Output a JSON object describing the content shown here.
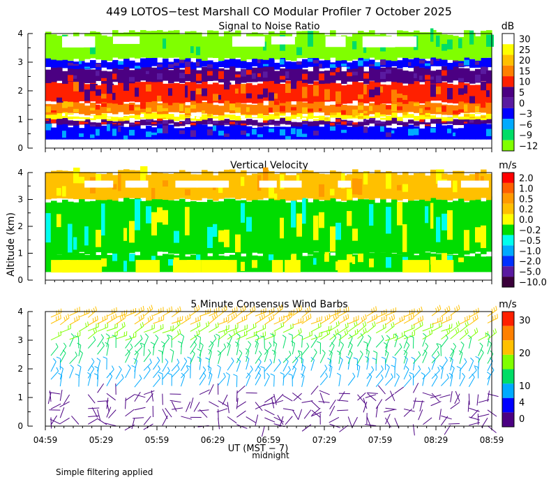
{
  "page": {
    "title": "449 LOTOS−test Marshall CO Modular Profiler  7 October 2025",
    "y_axis_label": "Altitude (km)",
    "x_axis_label": "UT  (MST − 7)",
    "x_axis_sublabel": "midnight",
    "footnote": "Simple filtering applied"
  },
  "chart_data": [
    {
      "type": "heatmap",
      "title": "Signal to Noise Ratio",
      "ylabel": "Altitude (km)",
      "ylim": [
        0,
        4
      ],
      "y_ticks": [
        "0",
        "1",
        "2",
        "3",
        "4"
      ],
      "x_ticks": [
        "04:59",
        "05:29",
        "05:59",
        "06:29",
        "06:59",
        "07:29",
        "07:59",
        "08:29",
        "08:59"
      ],
      "colorbar": {
        "unit": "dB",
        "labels": [
          "30",
          "25",
          "20",
          "15",
          "10",
          "5",
          "0",
          "−3",
          "−6",
          "−9",
          "−12"
        ],
        "colors": [
          "#ffffff",
          "#ffff00",
          "#ffc000",
          "#ff8000",
          "#ff2000",
          "#4b0082",
          "#5a1aa0",
          "#0000ff",
          "#00aaff",
          "#00dd66",
          "#80ff00"
        ]
      },
      "layers": [
        {
          "alt_range": [
            0.3,
            0.8
          ],
          "value_db": -3,
          "color": "#0000ff"
        },
        {
          "alt_range": [
            0.8,
            1.0
          ],
          "value_db": 0,
          "color": "#4b0082"
        },
        {
          "alt_range": [
            1.0,
            1.2
          ],
          "value_db": 25,
          "color": "#ffff00"
        },
        {
          "alt_range": [
            1.2,
            1.6
          ],
          "value_db": 15,
          "color": "#ff8000"
        },
        {
          "alt_range": [
            1.6,
            2.3
          ],
          "value_db": 10,
          "color": "#ff2000"
        },
        {
          "alt_range": [
            2.3,
            2.8
          ],
          "value_db": 0,
          "color": "#4b0082"
        },
        {
          "alt_range": [
            2.8,
            3.1
          ],
          "value_db": -3,
          "color": "#0000ff"
        },
        {
          "alt_range": [
            3.1,
            4.0
          ],
          "value_db": -12,
          "color": "#80ff00"
        }
      ]
    },
    {
      "type": "heatmap",
      "title": "Vertical Velocity",
      "ylabel": "Altitude (km)",
      "ylim": [
        0,
        4
      ],
      "y_ticks": [
        "0",
        "1",
        "2",
        "3",
        "4"
      ],
      "x_ticks": [
        "04:59",
        "05:29",
        "05:59",
        "06:29",
        "06:59",
        "07:29",
        "07:59",
        "08:29",
        "08:59"
      ],
      "colorbar": {
        "unit": "m/s",
        "labels": [
          "2.0",
          "1.0",
          "0.5",
          "0.2",
          "0.0",
          "−0.2",
          "−0.5",
          "−1.0",
          "−2.0",
          "−5.0",
          "−10.0"
        ],
        "colors": [
          "#ff0000",
          "#ff6000",
          "#ff9a00",
          "#ffc000",
          "#ffff00",
          "#00dd00",
          "#00ffee",
          "#00aaff",
          "#0030ff",
          "#5a1aa0",
          "#3a003a"
        ]
      },
      "layers": [
        {
          "alt_range": [
            0.3,
            1.0
          ],
          "value_ms": -0.2,
          "color": "#00dd00"
        },
        {
          "alt_range": [
            1.0,
            3.0
          ],
          "value_ms": -0.2,
          "color": "#00dd00"
        },
        {
          "alt_range": [
            3.0,
            4.0
          ],
          "value_ms": 0.2,
          "color": "#ffc000"
        }
      ]
    },
    {
      "type": "scatter",
      "title": "5 Minute Consensus Wind Barbs",
      "ylabel": "Altitude (km)",
      "ylim": [
        0,
        4
      ],
      "y_ticks": [
        "0",
        "1",
        "2",
        "3",
        "4"
      ],
      "x_ticks": [
        "04:59",
        "05:29",
        "05:59",
        "06:29",
        "06:59",
        "07:29",
        "07:59",
        "08:29",
        "08:59"
      ],
      "colorbar": {
        "unit": "m/s",
        "labels": [
          "30",
          "",
          "20",
          "",
          "10",
          "4",
          "0"
        ],
        "colors": [
          "#ff2000",
          "#ff8000",
          "#ffc000",
          "#80ff00",
          "#00dd66",
          "#00aaff",
          "#0000ff",
          "#4b0082"
        ]
      },
      "wind_speed_by_altitude": [
        {
          "alt_range": [
            0.0,
            1.2
          ],
          "speed_ms": 3,
          "color": "#4b0082"
        },
        {
          "alt_range": [
            1.2,
            2.0
          ],
          "speed_ms": 6,
          "color": "#00aaff"
        },
        {
          "alt_range": [
            2.0,
            3.0
          ],
          "speed_ms": 11,
          "color": "#00dd66"
        },
        {
          "alt_range": [
            3.0,
            3.5
          ],
          "speed_ms": 18,
          "color": "#80ff00"
        },
        {
          "alt_range": [
            3.5,
            4.0
          ],
          "speed_ms": 22,
          "color": "#ffc000"
        }
      ]
    }
  ]
}
